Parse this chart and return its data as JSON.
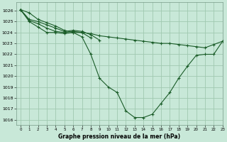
{
  "title": "Graphe pression niveau de la mer (hPa)",
  "background_color": "#c8e8d8",
  "grid_color": "#a0c8b0",
  "line_color": "#1a5c28",
  "xlim": [
    -0.5,
    23
  ],
  "ylim": [
    1015.5,
    1026.8
  ],
  "yticks": [
    1016,
    1017,
    1018,
    1019,
    1020,
    1021,
    1022,
    1023,
    1024,
    1025,
    1026
  ],
  "xticks": [
    0,
    1,
    2,
    3,
    4,
    5,
    6,
    7,
    8,
    9,
    10,
    11,
    12,
    13,
    14,
    15,
    16,
    17,
    18,
    19,
    20,
    21,
    22,
    23
  ],
  "series": [
    [
      1026.1,
      1025.8,
      1025.2,
      1024.9,
      1024.6,
      1024.2,
      1024.0,
      1024.0,
      1023.9,
      1023.7,
      1023.6,
      1023.5,
      1023.4,
      1023.3,
      1023.2,
      1023.1,
      1023.0,
      1023.0,
      1022.9,
      1022.8,
      1022.7,
      1022.6,
      1022.9,
      1023.2
    ],
    [
      1026.1,
      1025.0,
      1024.5,
      1024.0,
      1024.0,
      1023.9,
      1024.0,
      1023.6,
      1022.0,
      1019.8,
      1019.0,
      1018.5,
      1016.8,
      1016.2,
      1016.2,
      1016.5,
      1017.5,
      1018.5,
      1019.8,
      1020.9,
      1021.9,
      1022.0,
      1022.0,
      1023.2
    ],
    [
      1026.1,
      1025.1,
      1024.8,
      1024.4,
      1024.1,
      1024.0,
      1024.1,
      1024.0,
      1023.5,
      null,
      null,
      null,
      null,
      null,
      null,
      null,
      null,
      null,
      null,
      null,
      null,
      null,
      null,
      null
    ],
    [
      1026.1,
      1025.2,
      1025.0,
      1024.7,
      1024.4,
      1024.1,
      1024.2,
      1024.1,
      1023.8,
      1023.3,
      null,
      null,
      null,
      null,
      null,
      null,
      null,
      null,
      null,
      null,
      null,
      null,
      null,
      null
    ]
  ]
}
